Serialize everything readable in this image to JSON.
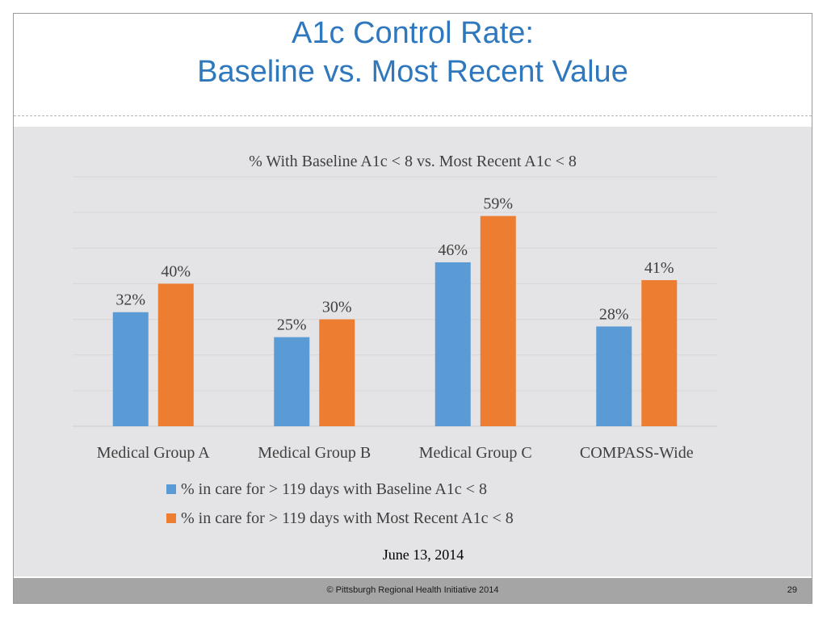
{
  "slide": {
    "title_line1": "A1c Control Rate:",
    "title_line2": "Baseline vs. Most Recent Value",
    "footer_text": "© Pittsburgh Regional Health Initiative  2014",
    "page_number": "29"
  },
  "colors": {
    "title": "#2f78bd",
    "baseline": "#5b9bd5",
    "recent": "#ed7d31",
    "panel": "#e4e3e5",
    "footer": "#a5a5a5"
  },
  "chart_data": {
    "type": "bar",
    "title": "% With Baseline A1c < 8 vs.  Most Recent A1c < 8",
    "categories": [
      "Medical Group A",
      "Medical Group B",
      "Medical Group C",
      "COMPASS-Wide"
    ],
    "series": [
      {
        "name": "% in care for > 119 days with Baseline A1c < 8",
        "values": [
          32,
          25,
          46,
          28
        ],
        "labels": [
          "32%",
          "25%",
          "46%",
          "28%"
        ],
        "color": "#5b9bd5"
      },
      {
        "name": "% in care for > 119 days with Most Recent A1c < 8",
        "values": [
          40,
          30,
          59,
          41
        ],
        "labels": [
          "40%",
          "30%",
          "59%",
          "41%"
        ],
        "color": "#ed7d31"
      }
    ],
    "ylim": [
      0,
      70
    ],
    "grid": true,
    "legend_position": "bottom",
    "annotation": "June 13, 2014"
  }
}
